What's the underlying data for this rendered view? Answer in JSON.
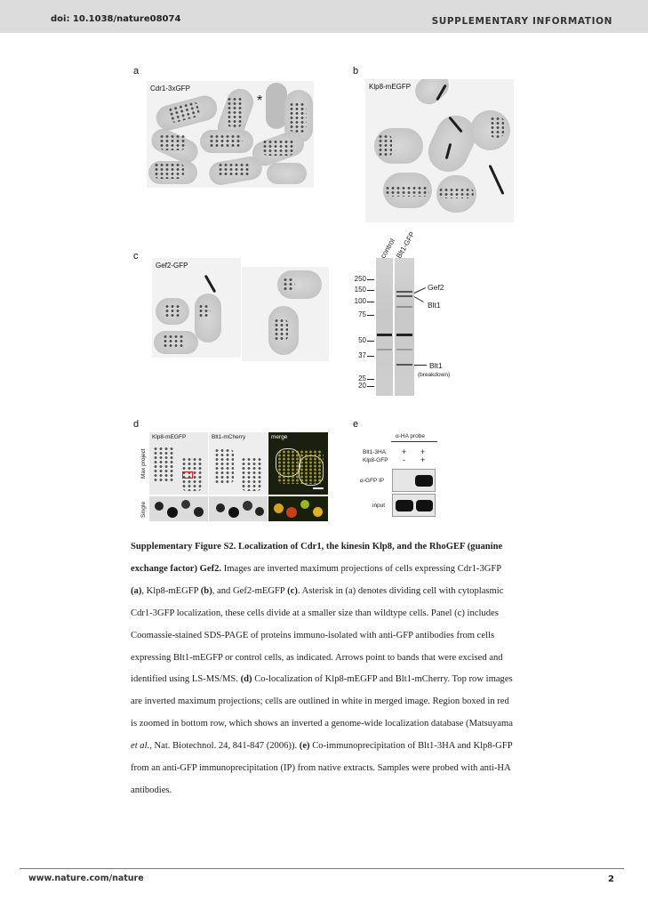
{
  "header": {
    "doi": "doi: 10.1038/nature08074",
    "section": "SUPPLEMENTARY INFORMATION"
  },
  "panels": {
    "a": {
      "letter": "a",
      "label": "Cdr1-3xGFP",
      "asterisk": "*"
    },
    "b": {
      "letter": "b",
      "label": "Klp8-mEGFP"
    },
    "c": {
      "letter": "c",
      "label": "Gef2-GFP"
    },
    "d": {
      "letter": "d",
      "columns": [
        "Klp8-mEGFP",
        "Blt1-mCherry",
        "merge"
      ],
      "rows": [
        "Max project",
        "Single"
      ]
    },
    "e": {
      "letter": "e",
      "probe": "α-HA probe",
      "row1_label": "Blt1-3HA",
      "row1_signs": [
        "+",
        "+"
      ],
      "row2_label": "Klp8-GFP",
      "row2_signs": [
        "-",
        "+"
      ],
      "ip_label": "α-GFP IP",
      "input_label": "input"
    }
  },
  "gel": {
    "lanes": [
      "control",
      "Blt1-GFP"
    ],
    "markers": [
      "250",
      "150",
      "100",
      "75",
      "50",
      "37",
      "25",
      "20"
    ],
    "annotations": {
      "gef2": "Gef2",
      "blt1": "Blt1",
      "blt1_bd": "Blt1",
      "breakdown": "(breakdown)"
    }
  },
  "caption": {
    "title_bold": "Supplementary Figure S2. Localization of Cdr1, the kinesin Klp8, and the RhoGEF (guanine exchange factor) Gef2.",
    "s1": " Images are inverted maximum projections of cells expressing Cdr1-3GFP ",
    "b_a": "(a)",
    "s2": ", Klp8-mEGFP ",
    "b_b": "(b)",
    "s3": ", and Gef2-mEGFP ",
    "b_c": "(c)",
    "s4": ". Asterisk in (a) denotes dividing cell with cytoplasmic Cdr1-3GFP localization, these cells divide at a smaller size than wildtype cells. Panel (c) includes Coomassie-stained SDS-PAGE of proteins immuno-isolated with anti-GFP antibodies from cells expressing Blt1-mEGFP or control cells, as indicated. Arrows point to bands that were excised and identified using LS-MS/MS. ",
    "b_d": "(d)",
    "s5": " Co-localization of Klp8-mEGFP and Blt1-mCherry. Top row images are inverted maximum projections; cells are outlined in white in merged image. Region boxed in red is zoomed in bottom row, which shows an inverted a genome-wide localization database (Matsuyama ",
    "s5_italic": "et al",
    "s6": "., Nat. Biotechnol. 24, 841-847 (2006)). ",
    "b_e": "(e)",
    "s7": " Co-immunoprecipitation of Blt1-3HA and Klp8-GFP from an anti-GFP immunoprecipitation (IP) from native extracts. Samples were probed with anti-HA antibodies."
  },
  "footer": {
    "url": "www.nature.com/nature",
    "page": "2"
  }
}
